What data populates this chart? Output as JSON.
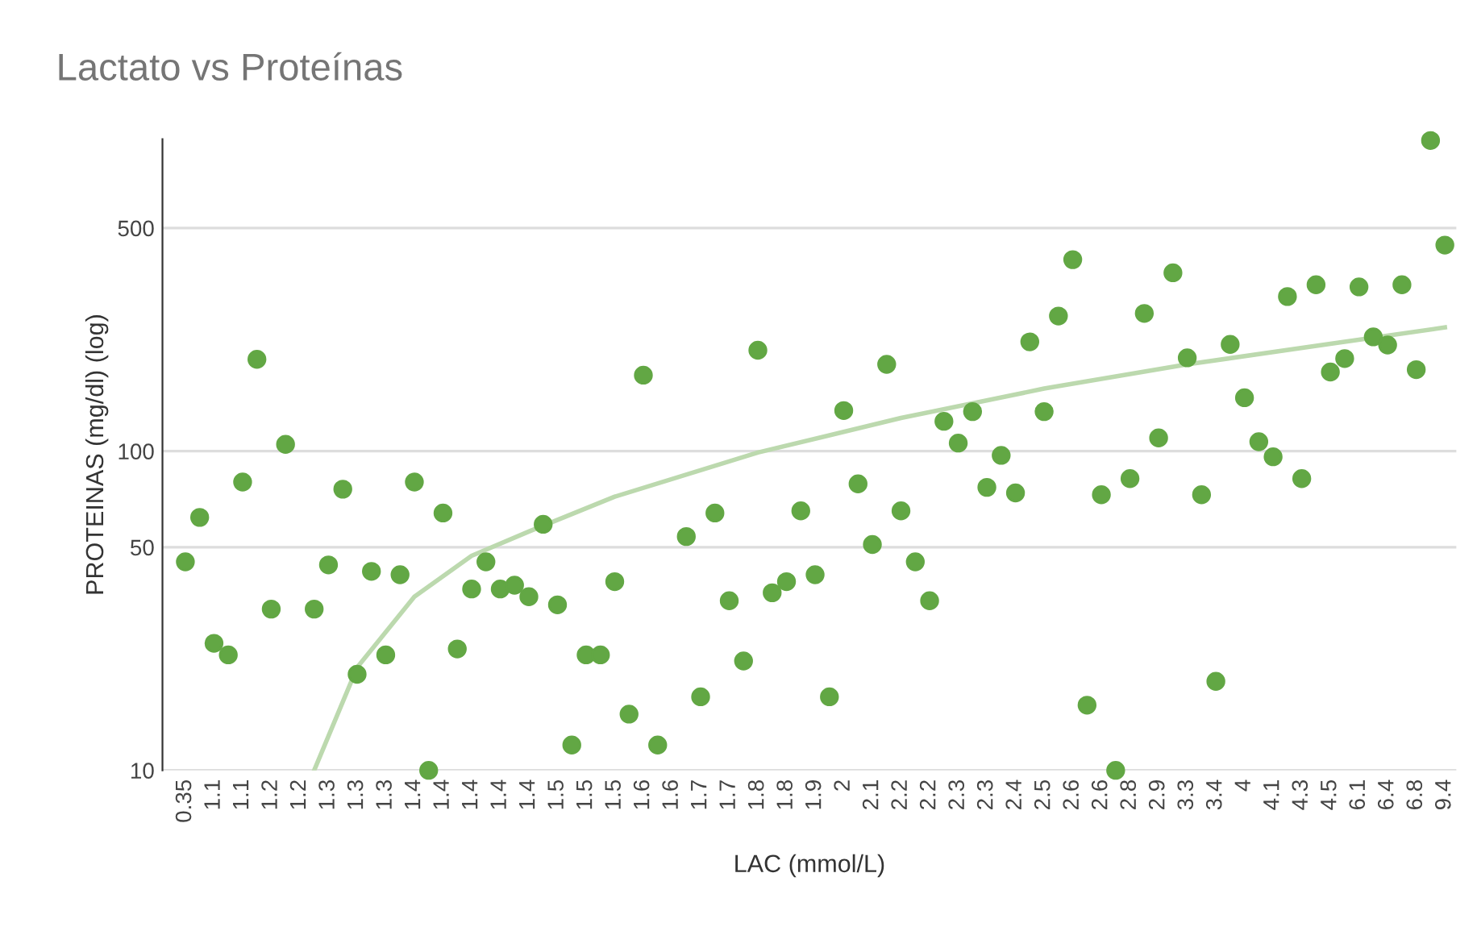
{
  "chart_data": {
    "type": "scatter",
    "title": "Lactato vs Proteínas",
    "xlabel": "LAC (mmol/L)",
    "ylabel": "PROTEINAS (mg/dl) (log)",
    "categories": [
      "0.35",
      null,
      "1.1",
      null,
      "1.1",
      null,
      "1.2",
      null,
      "1.2",
      null,
      "1.3",
      null,
      "1.3",
      null,
      "1.3",
      null,
      "1.4",
      null,
      "1.4",
      null,
      "1.4",
      null,
      "1.4",
      null,
      "1.4",
      null,
      "1.5",
      null,
      "1.5",
      null,
      "1.5",
      null,
      "1.6",
      null,
      "1.6",
      null,
      "1.7",
      null,
      "1.7",
      null,
      "1.8",
      null,
      "1.8",
      null,
      "1.9",
      null,
      "2",
      null,
      "2.1",
      null,
      "2.2",
      null,
      "2.2",
      null,
      "2.3",
      null,
      "2.3",
      null,
      "2.4",
      null,
      "2.5",
      null,
      "2.6",
      null,
      "2.6",
      null,
      "2.8",
      null,
      "2.9",
      null,
      "3.3",
      null,
      "3.4",
      null,
      "4",
      null,
      "4.1",
      null,
      "4.3",
      null,
      "4.5",
      null,
      "6.1",
      null,
      "6.4",
      null,
      "6.8",
      null,
      "9.4"
    ],
    "series": [
      {
        "marker": "circle",
        "color": "#62a744",
        "values": [
          45,
          62,
          25,
          23,
          80,
          194,
          32,
          105,
          null,
          32,
          44,
          76,
          20,
          42,
          23,
          41,
          80,
          10,
          64,
          24,
          37,
          45,
          37,
          38,
          35,
          59,
          33,
          12,
          23,
          23,
          39,
          15,
          173,
          12,
          null,
          54,
          17,
          64,
          34,
          22,
          207,
          36,
          39,
          65,
          41,
          17,
          134,
          79,
          51,
          187,
          65,
          45,
          34,
          124,
          106,
          133,
          77,
          97,
          74,
          220,
          133,
          265,
          398,
          16,
          73,
          10,
          82,
          270,
          110,
          362,
          196,
          73,
          19,
          216,
          147,
          107,
          96,
          305,
          82,
          332,
          177,
          195,
          327,
          228,
          215,
          332,
          180,
          940,
          442
        ]
      },
      {
        "type": "line",
        "color": "#bcd9ae",
        "values": [
          null,
          null,
          null,
          null,
          null,
          null,
          null,
          null,
          null,
          10,
          null,
          null,
          21,
          null,
          null,
          null,
          35,
          null,
          null,
          null,
          47,
          null,
          null,
          null,
          56,
          null,
          null,
          null,
          null,
          null,
          72,
          null,
          null,
          null,
          null,
          null,
          null,
          null,
          null,
          null,
          99,
          null,
          null,
          null,
          null,
          null,
          null,
          null,
          null,
          null,
          127,
          null,
          null,
          null,
          null,
          null,
          null,
          null,
          null,
          null,
          157,
          null,
          null,
          null,
          null,
          null,
          null,
          null,
          null,
          null,
          187,
          null,
          null,
          null,
          null,
          null,
          null,
          null,
          null,
          null,
          217,
          null,
          null,
          null,
          null,
          null,
          null,
          null,
          244
        ]
      }
    ],
    "log": "y",
    "ylim": [
      10,
      950
    ],
    "yticks": [
      10,
      50,
      100,
      500
    ],
    "grid": "y",
    "legend": false
  }
}
